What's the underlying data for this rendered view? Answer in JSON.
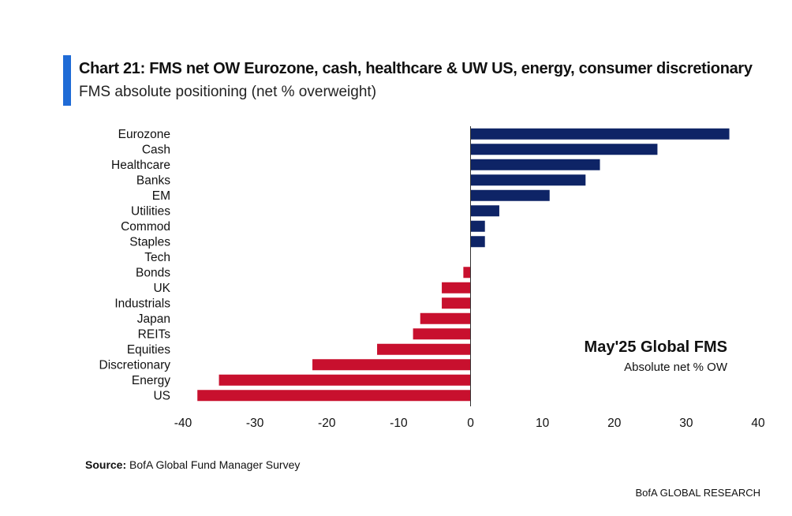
{
  "header": {
    "title": "Chart 21: FMS net OW Eurozone, cash, healthcare & UW US, energy, consumer discretionary",
    "subtitle": "FMS absolute positioning (net % overweight)"
  },
  "annotation": {
    "title": "May'25 Global FMS",
    "subtitle": "Absolute net % OW"
  },
  "footer": {
    "source_label": "Source:",
    "source_text": "BofA Global Fund Manager Survey",
    "brand": "BofA GLOBAL RESEARCH"
  },
  "colors": {
    "positive": "#0e2466",
    "negative": "#c8102e",
    "accent_bar": "#1f6bd6"
  },
  "chart_data": {
    "type": "bar",
    "orientation": "horizontal",
    "title": "Chart 21: FMS net OW Eurozone, cash, healthcare & UW US, energy, consumer discretionary",
    "subtitle": "FMS absolute positioning (net % overweight)",
    "categories": [
      "Eurozone",
      "Cash",
      "Healthcare",
      "Banks",
      "EM",
      "Utilities",
      "Commod",
      "Staples",
      "Tech",
      "Bonds",
      "UK",
      "Industrials",
      "Japan",
      "REITs",
      "Equities",
      "Discretionary",
      "Energy",
      "US"
    ],
    "values": [
      36,
      26,
      18,
      16,
      11,
      4,
      2,
      2,
      0,
      -1,
      -4,
      -4,
      -7,
      -8,
      -13,
      -22,
      -35,
      -38
    ],
    "xlim": [
      -40,
      40
    ],
    "xticks": [
      -40,
      -30,
      -20,
      -10,
      0,
      10,
      20,
      30,
      40
    ],
    "grid": false,
    "legend": "none"
  }
}
